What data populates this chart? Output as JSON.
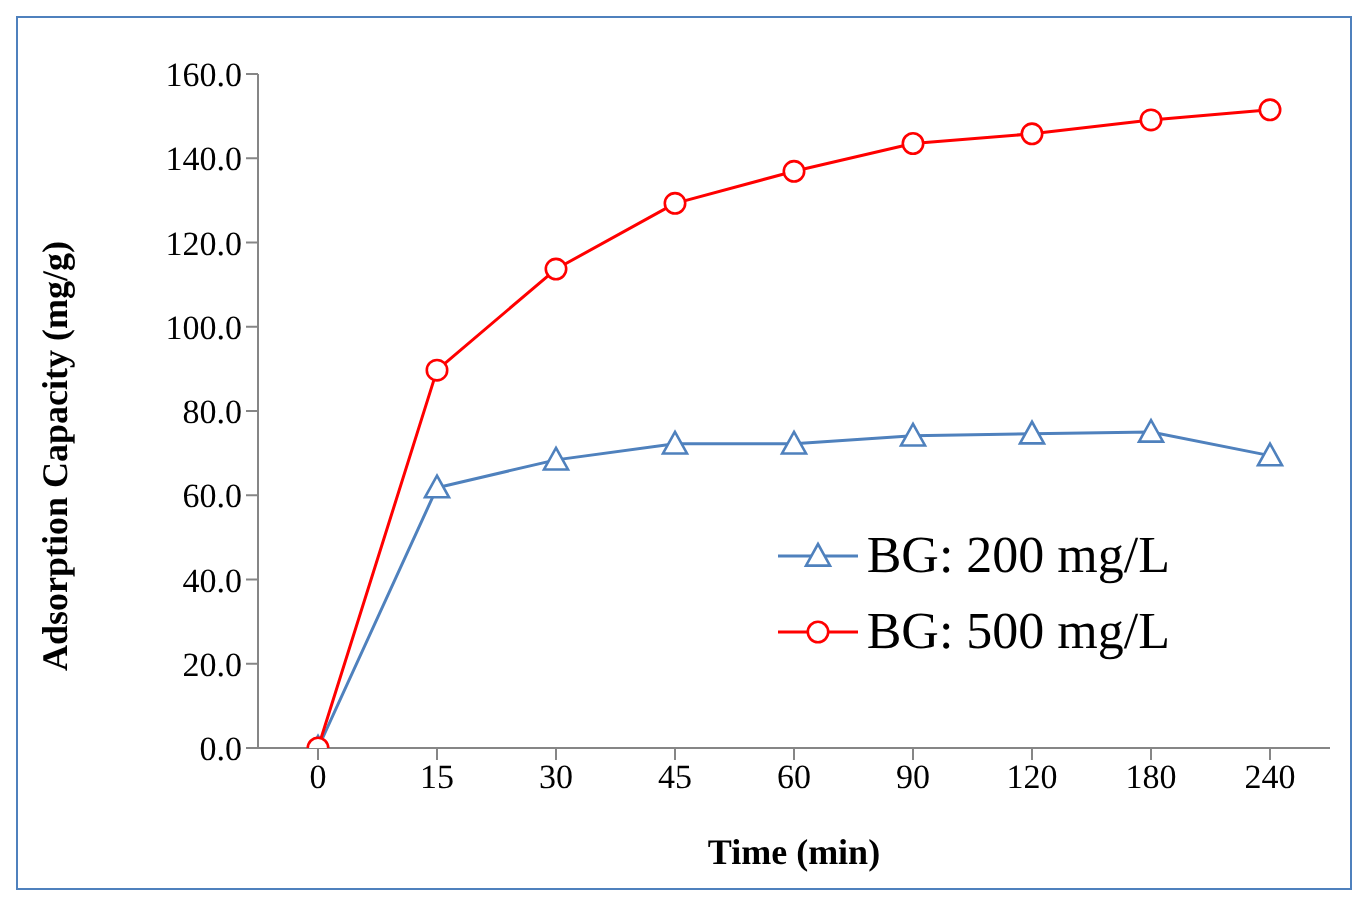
{
  "chart_data": {
    "type": "line",
    "xlabel": "Time (min)",
    "ylabel": "Adsorption Capacity (mg/g)",
    "categories": [
      "0",
      "15",
      "30",
      "45",
      "60",
      "90",
      "120",
      "180",
      "240"
    ],
    "series": [
      {
        "name": "BG: 200 mg/L",
        "color": "#4f81bd",
        "marker": "triangle",
        "values": [
          0,
          61.8,
          68.4,
          72.2,
          72.2,
          74.1,
          74.6,
          75.0,
          69.4
        ]
      },
      {
        "name": "BG: 500 mg/L",
        "color": "#ff0000",
        "marker": "circle",
        "values": [
          0,
          89.7,
          113.7,
          129.3,
          136.9,
          143.5,
          145.8,
          149.1,
          151.5
        ]
      }
    ],
    "ylim": [
      0,
      160
    ],
    "yticks": [
      {
        "value": 0,
        "label": "0.0"
      },
      {
        "value": 20,
        "label": "20.0"
      },
      {
        "value": 40,
        "label": "40.0"
      },
      {
        "value": 60,
        "label": "60.0"
      },
      {
        "value": 80,
        "label": "80.0"
      },
      {
        "value": 100,
        "label": "100.0"
      },
      {
        "value": 120,
        "label": "120.0"
      },
      {
        "value": 140,
        "label": "140.0"
      },
      {
        "value": 160,
        "label": "160.0"
      }
    ],
    "grid": false,
    "legend": "right",
    "line_style": "solid"
  }
}
